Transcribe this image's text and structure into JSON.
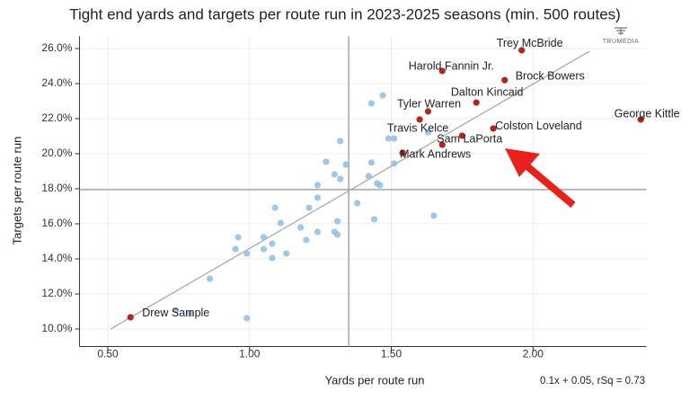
{
  "chart_data": {
    "type": "scatter",
    "title": "Tight end yards and targets per route run in 2023-2025 seasons (min. 500 routes)",
    "x_label": "Yards per route run",
    "y_label": "Targets per route run",
    "logo": "TRUMEDIA",
    "fit_label": "0.1x + 0.05, rSq = 0.73",
    "xlim": [
      0.4,
      2.4
    ],
    "ylim": [
      9,
      26.7
    ],
    "xticks": [
      {
        "value": 0.5,
        "label": "0.50"
      },
      {
        "value": 1,
        "label": "1.00"
      },
      {
        "value": 1.5,
        "label": "1.50"
      },
      {
        "value": 2,
        "label": "2.00"
      }
    ],
    "yticks": [
      {
        "value": 10,
        "label": "10.0%"
      },
      {
        "value": 12,
        "label": "12.0%"
      },
      {
        "value": 14,
        "label": "14.0%"
      },
      {
        "value": 16,
        "label": "16.0%"
      },
      {
        "value": 18,
        "label": "18.0%"
      },
      {
        "value": 20,
        "label": "20.0%"
      },
      {
        "value": 22,
        "label": "22.0%"
      },
      {
        "value": 24,
        "label": "24.0%"
      },
      {
        "value": 26,
        "label": "26.0%"
      }
    ],
    "grid": true,
    "mean_x": 1.35,
    "mean_y": 17.95,
    "trendline": {
      "x": [
        0.51,
        2.2
      ],
      "y": [
        10,
        25.85
      ],
      "color": "#aaaaaa"
    },
    "points": {
      "color": "#8fbde0",
      "x": [
        1.47,
        1.43,
        1.63,
        1.49,
        1.51,
        1.32,
        1.54,
        1.51,
        1.27,
        1.34,
        1.43,
        1.3,
        1.32,
        1.24,
        1.42,
        1.45,
        1.46,
        1.24,
        1.38,
        1.09,
        1.21,
        1.65,
        1.44,
        1.31,
        1.11,
        1.18,
        1.24,
        1.3,
        1.31,
        1.2,
        0.96,
        1.05,
        1.08,
        0.95,
        1.05,
        0.99,
        1.13,
        1.08,
        0.86,
        0.74,
        0.79,
        0.99
      ],
      "y": [
        23.33,
        22.87,
        21.23,
        20.87,
        20.87,
        20.72,
        20.05,
        19.44,
        19.54,
        19.38,
        19.49,
        18.82,
        18.56,
        18.21,
        18.72,
        18.31,
        18.21,
        17.49,
        17.18,
        16.92,
        16.92,
        16.46,
        16.26,
        16.15,
        16.05,
        15.79,
        15.54,
        15.54,
        15.38,
        15.08,
        15.23,
        15.23,
        14.87,
        14.56,
        14.56,
        14.31,
        14.31,
        14.05,
        12.87,
        11.08,
        10.87,
        10.62
      ]
    },
    "highlighted": {
      "color": "#b3261e",
      "labels": [
        "Trey McBride",
        "Harold Fannin Jr.",
        "Brock Bowers",
        "Dalton Kincaid",
        "Tyler Warren",
        "George Kittle",
        "Travis Kelce",
        "Colston Loveland",
        null,
        "Sam LaPorta",
        "Mark Andrews",
        "Drew Sample"
      ],
      "x": [
        1.96,
        1.68,
        1.9,
        1.8,
        1.63,
        2.38,
        1.6,
        1.86,
        1.75,
        1.68,
        1.54,
        0.58
      ],
      "y": [
        25.9,
        24.72,
        24.2,
        22.92,
        22.41,
        21.95,
        21.95,
        21.44,
        21.03,
        20.51,
        20.05,
        10.67
      ]
    }
  }
}
